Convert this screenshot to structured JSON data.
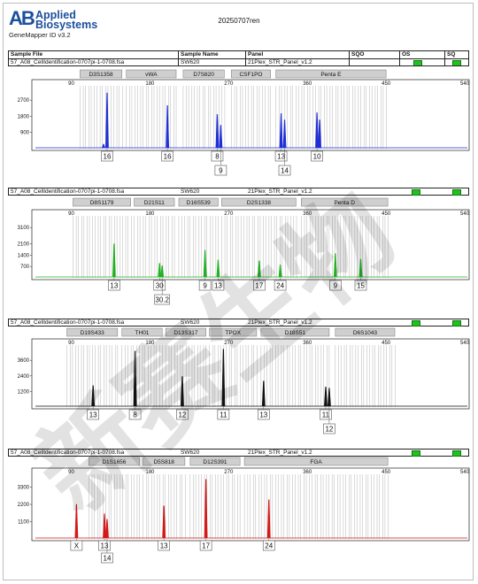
{
  "header": {
    "logo_mark": "AB",
    "logo_line1": "Applied",
    "logo_line2": "Biosystems",
    "software": "GeneMapper ID v3.2",
    "run_name": "20250707ren"
  },
  "info_table": {
    "headers": [
      "Sample File",
      "Sample Name",
      "Panel",
      "SQO",
      "OS",
      "SQ"
    ],
    "sample_file": "57_A08_CellIdentification-0707pi-1-0708.fsa",
    "sample_name": "SW620",
    "panel": "21Plex_STR_Panel_v1.2"
  },
  "colors": {
    "blue": "#1f2fd6",
    "green": "#22b022",
    "black": "#111111",
    "red": "#d41818",
    "marker_fill": "#cfcfcf",
    "quality_green": "#1fc21f"
  },
  "chart_data": [
    {
      "type": "line",
      "dye": "blue",
      "x_range": [
        45,
        545
      ],
      "x_ticks": [
        90,
        180,
        270,
        360,
        450,
        540
      ],
      "y_ticks": [
        900,
        1800,
        2700
      ],
      "ylim": [
        0,
        3300
      ],
      "markers": [
        {
          "name": "D3S1358",
          "start": 100,
          "end": 148
        },
        {
          "name": "vWA",
          "start": 153,
          "end": 210
        },
        {
          "name": "D7S820",
          "start": 218,
          "end": 265
        },
        {
          "name": "CSF1PO",
          "start": 273,
          "end": 318
        },
        {
          "name": "Penta E",
          "start": 324,
          "end": 450
        }
      ],
      "peaks": [
        {
          "x": 131,
          "y": 3100
        },
        {
          "x": 127,
          "y": 250
        },
        {
          "x": 200,
          "y": 2400
        },
        {
          "x": 257,
          "y": 1900
        },
        {
          "x": 261,
          "y": 1300
        },
        {
          "x": 330,
          "y": 1950
        },
        {
          "x": 334,
          "y": 1600
        },
        {
          "x": 371,
          "y": 2000
        },
        {
          "x": 374,
          "y": 1600
        }
      ],
      "labels": [
        {
          "x": 131,
          "row": 0,
          "text": "16"
        },
        {
          "x": 200,
          "row": 0,
          "text": "16"
        },
        {
          "x": 257,
          "row": 0,
          "text": "8"
        },
        {
          "x": 261,
          "row": 1,
          "text": "9"
        },
        {
          "x": 330,
          "row": 0,
          "text": "13"
        },
        {
          "x": 334,
          "row": 1,
          "text": "14"
        },
        {
          "x": 371,
          "row": 0,
          "text": "10"
        }
      ]
    },
    {
      "type": "line",
      "dye": "green",
      "x_range": [
        45,
        545
      ],
      "x_ticks": [
        90,
        180,
        270,
        360,
        450,
        540
      ],
      "y_ticks": [
        700,
        1400,
        2100,
        3100
      ],
      "ylim": [
        0,
        3600
      ],
      "markers": [
        {
          "name": "D8S1179",
          "start": 92,
          "end": 158
        },
        {
          "name": "D21S11",
          "start": 162,
          "end": 208
        },
        {
          "name": "D16S539",
          "start": 213,
          "end": 258
        },
        {
          "name": "D2S1338",
          "start": 262,
          "end": 347
        },
        {
          "name": "Penta D",
          "start": 353,
          "end": 452
        }
      ],
      "peaks": [
        {
          "x": 139,
          "y": 2100
        },
        {
          "x": 191,
          "y": 900
        },
        {
          "x": 194,
          "y": 750
        },
        {
          "x": 243,
          "y": 1700
        },
        {
          "x": 258,
          "y": 1100
        },
        {
          "x": 305,
          "y": 1050
        },
        {
          "x": 329,
          "y": 800
        },
        {
          "x": 392,
          "y": 1500
        },
        {
          "x": 421,
          "y": 1150
        }
      ],
      "labels": [
        {
          "x": 139,
          "row": 0,
          "text": "13"
        },
        {
          "x": 191,
          "row": 0,
          "text": "30"
        },
        {
          "x": 194,
          "row": 1,
          "text": "30.2"
        },
        {
          "x": 243,
          "row": 0,
          "text": "9"
        },
        {
          "x": 258,
          "row": 0,
          "text": "13"
        },
        {
          "x": 305,
          "row": 0,
          "text": "17"
        },
        {
          "x": 329,
          "row": 0,
          "text": "24"
        },
        {
          "x": 392,
          "row": 0,
          "text": "9"
        },
        {
          "x": 421,
          "row": 0,
          "text": "15"
        }
      ]
    },
    {
      "type": "line",
      "dye": "black",
      "x_range": [
        45,
        545
      ],
      "x_ticks": [
        90,
        180,
        270,
        360,
        450,
        540
      ],
      "y_ticks": [
        1200,
        2400,
        3600
      ],
      "ylim": [
        0,
        4500
      ],
      "markers": [
        {
          "name": "D19S433",
          "start": 85,
          "end": 143
        },
        {
          "name": "TH01",
          "start": 148,
          "end": 194
        },
        {
          "name": "D13S317",
          "start": 198,
          "end": 244
        },
        {
          "name": "TPOX",
          "start": 248,
          "end": 302
        },
        {
          "name": "D18S51",
          "start": 307,
          "end": 385
        },
        {
          "name": "D6S1043",
          "start": 392,
          "end": 460
        }
      ],
      "peaks": [
        {
          "x": 115,
          "y": 1650
        },
        {
          "x": 163,
          "y": 4300
        },
        {
          "x": 217,
          "y": 2350
        },
        {
          "x": 264,
          "y": 4450
        },
        {
          "x": 310,
          "y": 2000
        },
        {
          "x": 381,
          "y": 1550
        },
        {
          "x": 385,
          "y": 1450
        }
      ],
      "labels": [
        {
          "x": 115,
          "row": 0,
          "text": "13"
        },
        {
          "x": 163,
          "row": 0,
          "text": "8"
        },
        {
          "x": 217,
          "row": 0,
          "text": "12"
        },
        {
          "x": 264,
          "row": 0,
          "text": "11"
        },
        {
          "x": 310,
          "row": 0,
          "text": "13"
        },
        {
          "x": 381,
          "row": 0,
          "text": "11"
        },
        {
          "x": 385,
          "row": 1,
          "text": "12"
        }
      ]
    },
    {
      "type": "line",
      "dye": "red",
      "x_range": [
        45,
        545
      ],
      "x_ticks": [
        90,
        180,
        270,
        360,
        450,
        540
      ],
      "y_ticks": [
        1100,
        2200,
        3300
      ],
      "ylim": [
        0,
        3900
      ],
      "markers": [
        {
          "name": "D1S1656",
          "start": 110,
          "end": 168
        },
        {
          "name": "D5S818",
          "start": 172,
          "end": 220
        },
        {
          "name": "D12S391",
          "start": 226,
          "end": 283
        },
        {
          "name": "FGA",
          "start": 288,
          "end": 452
        }
      ],
      "peaks": [
        {
          "x": 96,
          "y": 2200
        },
        {
          "x": 128,
          "y": 1600
        },
        {
          "x": 131,
          "y": 1250
        },
        {
          "x": 196,
          "y": 2100
        },
        {
          "x": 244,
          "y": 3800
        },
        {
          "x": 316,
          "y": 2500
        }
      ],
      "labels": [
        {
          "x": 96,
          "row": 0,
          "text": "X"
        },
        {
          "x": 128,
          "row": 0,
          "text": "13"
        },
        {
          "x": 131,
          "row": 1,
          "text": "14"
        },
        {
          "x": 196,
          "row": 0,
          "text": "13"
        },
        {
          "x": 244,
          "row": 0,
          "text": "17"
        },
        {
          "x": 316,
          "row": 0,
          "text": "24"
        }
      ]
    }
  ],
  "watermark": {
    "text": "新赛生物"
  }
}
